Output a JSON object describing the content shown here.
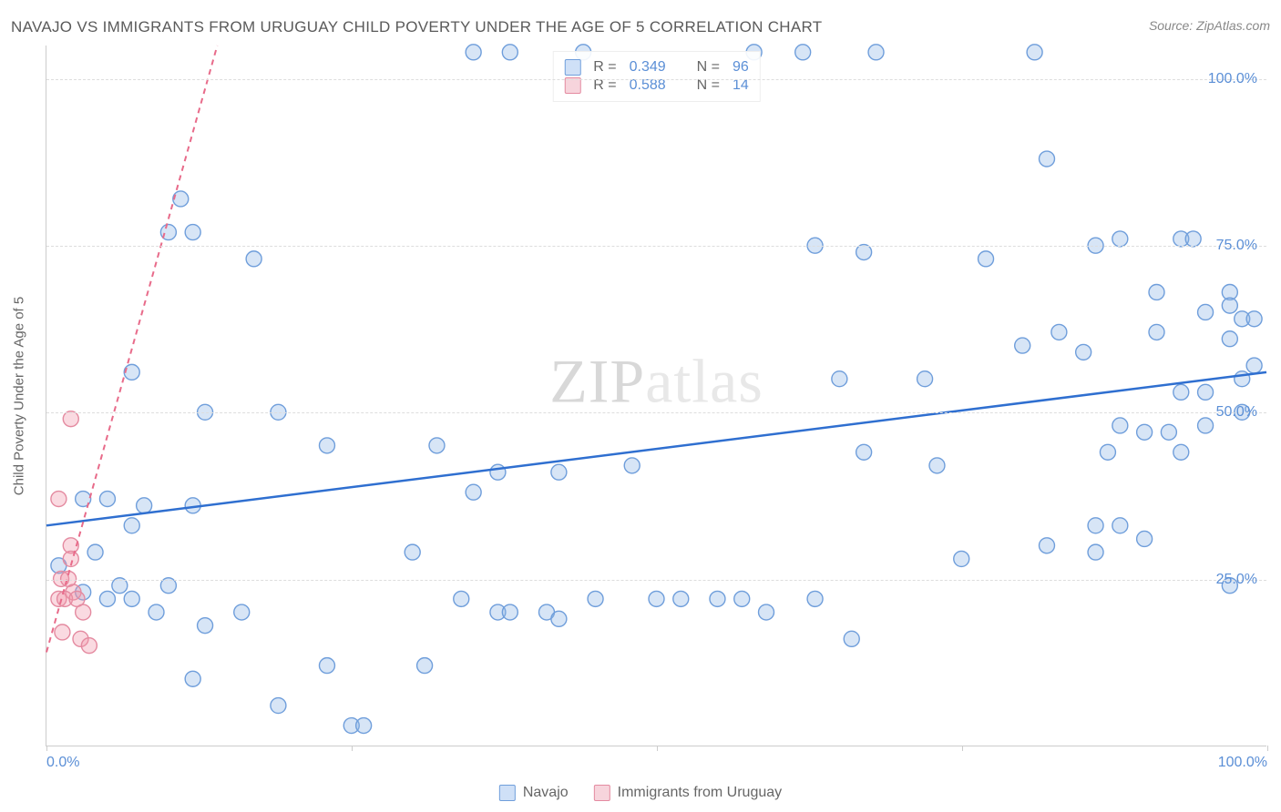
{
  "header": {
    "title": "NAVAJO VS IMMIGRANTS FROM URUGUAY CHILD POVERTY UNDER THE AGE OF 5 CORRELATION CHART",
    "source_prefix": "Source: ",
    "source_name": "ZipAtlas.com"
  },
  "watermark": {
    "zip": "ZIP",
    "atlas": "atlas"
  },
  "chart": {
    "type": "scatter",
    "y_axis_label": "Child Poverty Under the Age of 5",
    "xlim": [
      0,
      100
    ],
    "ylim": [
      0,
      105
    ],
    "x_ticks": [
      0,
      25,
      50,
      75,
      100
    ],
    "x_tick_labels": [
      "0.0%",
      "",
      "",
      "",
      "100.0%"
    ],
    "y_ticks": [
      25,
      50,
      75,
      100
    ],
    "y_tick_labels": [
      "25.0%",
      "50.0%",
      "75.0%",
      "100.0%"
    ],
    "grid_color": "#dddddd",
    "axis_color": "#cccccc",
    "background_color": "#ffffff",
    "marker_radius": 8.5,
    "marker_stroke_width": 1.4,
    "series": [
      {
        "name": "Navajo",
        "swatch_fill": "#cfe0f7",
        "swatch_stroke": "#6f9edb",
        "marker_fill": "rgba(140,180,230,0.35)",
        "marker_stroke": "#6f9edb",
        "trend_color": "#2f6fd0",
        "trend_width": 2.5,
        "trend_dash": "",
        "r": "0.349",
        "n": "96",
        "trend": {
          "x1": 0,
          "y1": 33,
          "x2": 100,
          "y2": 56
        },
        "points": [
          [
            35,
            104
          ],
          [
            38,
            104
          ],
          [
            44,
            104
          ],
          [
            58,
            104
          ],
          [
            62,
            104
          ],
          [
            68,
            104
          ],
          [
            81,
            104
          ],
          [
            11,
            82
          ],
          [
            10,
            77
          ],
          [
            12,
            77
          ],
          [
            17,
            73
          ],
          [
            82,
            88
          ],
          [
            88,
            76
          ],
          [
            93,
            76
          ],
          [
            94,
            76
          ],
          [
            63,
            75
          ],
          [
            67,
            74
          ],
          [
            77,
            73
          ],
          [
            86,
            75
          ],
          [
            97,
            68
          ],
          [
            97,
            66
          ],
          [
            91,
            68
          ],
          [
            95,
            65
          ],
          [
            98,
            64
          ],
          [
            99,
            64
          ],
          [
            83,
            62
          ],
          [
            91,
            62
          ],
          [
            97,
            61
          ],
          [
            80,
            60
          ],
          [
            85,
            59
          ],
          [
            7,
            56
          ],
          [
            13,
            50
          ],
          [
            19,
            50
          ],
          [
            23,
            45
          ],
          [
            32,
            45
          ],
          [
            35,
            38
          ],
          [
            37,
            41
          ],
          [
            42,
            41
          ],
          [
            48,
            42
          ],
          [
            65,
            55
          ],
          [
            67,
            44
          ],
          [
            72,
            55
          ],
          [
            73,
            42
          ],
          [
            93,
            53
          ],
          [
            95,
            53
          ],
          [
            98,
            55
          ],
          [
            99,
            57
          ],
          [
            88,
            48
          ],
          [
            90,
            47
          ],
          [
            92,
            47
          ],
          [
            95,
            48
          ],
          [
            98,
            50
          ],
          [
            93,
            44
          ],
          [
            87,
            44
          ],
          [
            3,
            37
          ],
          [
            5,
            37
          ],
          [
            8,
            36
          ],
          [
            12,
            36
          ],
          [
            7,
            33
          ],
          [
            4,
            29
          ],
          [
            1,
            27
          ],
          [
            86,
            33
          ],
          [
            88,
            33
          ],
          [
            82,
            30
          ],
          [
            86,
            29
          ],
          [
            90,
            31
          ],
          [
            75,
            28
          ],
          [
            3,
            23
          ],
          [
            5,
            22
          ],
          [
            7,
            22
          ],
          [
            9,
            20
          ],
          [
            13,
            18
          ],
          [
            16,
            20
          ],
          [
            10,
            24
          ],
          [
            6,
            24
          ],
          [
            30,
            29
          ],
          [
            34,
            22
          ],
          [
            37,
            20
          ],
          [
            38,
            20
          ],
          [
            41,
            20
          ],
          [
            42,
            19
          ],
          [
            45,
            22
          ],
          [
            50,
            22
          ],
          [
            52,
            22
          ],
          [
            55,
            22
          ],
          [
            57,
            22
          ],
          [
            59,
            20
          ],
          [
            63,
            22
          ],
          [
            66,
            16
          ],
          [
            23,
            12
          ],
          [
            25,
            3
          ],
          [
            26,
            3
          ],
          [
            31,
            12
          ],
          [
            12,
            10
          ],
          [
            19,
            6
          ],
          [
            97,
            24
          ]
        ]
      },
      {
        "name": "Immigrants from Uruguay",
        "swatch_fill": "#f7d4dc",
        "swatch_stroke": "#e48aa0",
        "marker_fill": "rgba(240,150,170,0.35)",
        "marker_stroke": "#e48aa0",
        "trend_color": "#e86b8a",
        "trend_width": 2,
        "trend_dash": "6 5",
        "r": "0.588",
        "n": "14",
        "trend": {
          "x1": 0,
          "y1": 14,
          "x2": 14,
          "y2": 105
        },
        "points": [
          [
            2,
            49
          ],
          [
            1,
            37
          ],
          [
            2,
            30
          ],
          [
            2,
            28
          ],
          [
            1.2,
            25
          ],
          [
            1.8,
            25
          ],
          [
            2.2,
            23
          ],
          [
            1,
            22
          ],
          [
            1.5,
            22
          ],
          [
            2.5,
            22
          ],
          [
            3,
            20
          ],
          [
            1.3,
            17
          ],
          [
            2.8,
            16
          ],
          [
            3.5,
            15
          ]
        ]
      }
    ]
  },
  "legend_labels": {
    "r": "R =",
    "n": "N ="
  }
}
